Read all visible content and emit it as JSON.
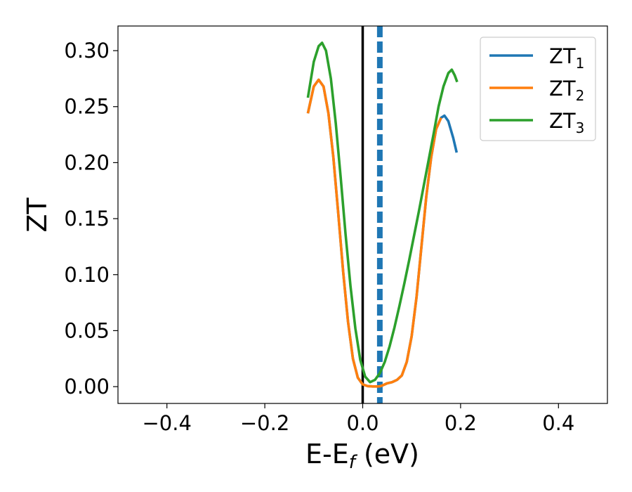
{
  "chart_data": {
    "type": "line",
    "xlabel": "E-E",
    "xlabel_sub": "f",
    "xlabel_unit": " (eV)",
    "ylabel": "ZT",
    "xlim": [
      -0.5,
      0.5
    ],
    "ylim": [
      -0.015,
      0.322
    ],
    "x_ticks": [
      -0.4,
      -0.2,
      0.0,
      0.2,
      0.4
    ],
    "x_tick_labels": [
      "−0.4",
      "−0.2",
      "0.0",
      "0.2",
      "0.4"
    ],
    "y_ticks": [
      0.0,
      0.05,
      0.1,
      0.15,
      0.2,
      0.25,
      0.3
    ],
    "y_tick_labels": [
      "0.00",
      "0.05",
      "0.10",
      "0.15",
      "0.20",
      "0.25",
      "0.30"
    ],
    "grid": false,
    "legend_position": "top-right",
    "vlines": [
      {
        "x": 0.0,
        "style": "solid",
        "color": "#000000"
      },
      {
        "x": 0.035,
        "style": "dashed",
        "color": "#1f77b4"
      }
    ],
    "series": [
      {
        "name": "ZT",
        "name_sub": "1",
        "color": "#1f77b4",
        "x": [
          -0.112,
          -0.1,
          -0.09,
          -0.08,
          -0.07,
          -0.06,
          -0.05,
          -0.04,
          -0.03,
          -0.02,
          -0.01,
          0.0,
          0.01,
          0.02,
          0.03,
          0.035,
          0.04,
          0.05,
          0.06,
          0.07,
          0.08,
          0.09,
          0.1,
          0.11,
          0.12,
          0.13,
          0.14,
          0.15,
          0.16,
          0.167,
          0.175,
          0.185,
          0.192
        ],
        "y": [
          0.244,
          0.268,
          0.274,
          0.268,
          0.244,
          0.205,
          0.155,
          0.103,
          0.058,
          0.025,
          0.008,
          0.002,
          0.0005,
          0.0002,
          0.0002,
          0.0003,
          0.001,
          0.003,
          0.004,
          0.006,
          0.01,
          0.022,
          0.045,
          0.08,
          0.125,
          0.17,
          0.205,
          0.23,
          0.24,
          0.242,
          0.237,
          0.222,
          0.209
        ]
      },
      {
        "name": "ZT",
        "name_sub": "2",
        "color": "#ff7f0e",
        "x": [
          -0.112,
          -0.1,
          -0.09,
          -0.08,
          -0.07,
          -0.06,
          -0.05,
          -0.04,
          -0.03,
          -0.02,
          -0.01,
          0.0,
          0.01,
          0.02,
          0.03,
          0.035,
          0.04,
          0.05,
          0.06,
          0.07,
          0.08,
          0.09,
          0.1,
          0.11,
          0.12,
          0.13,
          0.14,
          0.15,
          0.16
        ],
        "y": [
          0.244,
          0.268,
          0.274,
          0.268,
          0.244,
          0.205,
          0.155,
          0.103,
          0.058,
          0.025,
          0.008,
          0.002,
          0.0005,
          0.0002,
          0.0002,
          0.0003,
          0.001,
          0.003,
          0.004,
          0.006,
          0.01,
          0.022,
          0.045,
          0.08,
          0.125,
          0.17,
          0.205,
          0.23,
          0.24
        ]
      },
      {
        "name": "ZT",
        "name_sub": "3",
        "color": "#2ca02c",
        "x": [
          -0.112,
          -0.1,
          -0.09,
          -0.083,
          -0.075,
          -0.065,
          -0.055,
          -0.045,
          -0.035,
          -0.025,
          -0.015,
          -0.005,
          0.005,
          0.015,
          0.025,
          0.035,
          0.045,
          0.055,
          0.065,
          0.075,
          0.085,
          0.095,
          0.105,
          0.115,
          0.125,
          0.135,
          0.145,
          0.155,
          0.165,
          0.175,
          0.182,
          0.188,
          0.193
        ],
        "y": [
          0.258,
          0.29,
          0.304,
          0.307,
          0.3,
          0.275,
          0.235,
          0.187,
          0.136,
          0.09,
          0.052,
          0.024,
          0.009,
          0.004,
          0.006,
          0.012,
          0.022,
          0.036,
          0.053,
          0.072,
          0.092,
          0.113,
          0.135,
          0.157,
          0.18,
          0.203,
          0.226,
          0.25,
          0.268,
          0.28,
          0.283,
          0.278,
          0.272
        ]
      }
    ]
  }
}
